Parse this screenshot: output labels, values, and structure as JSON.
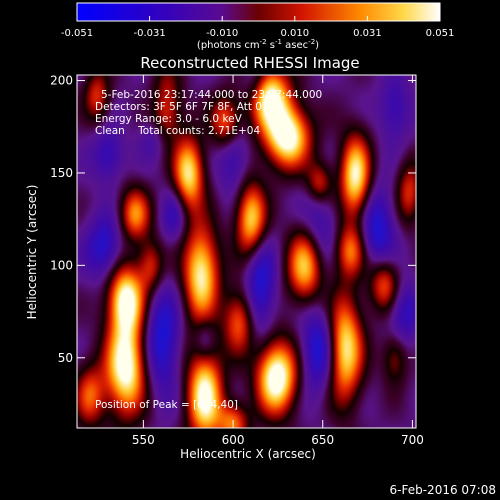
{
  "chart_data": {
    "type": "heatmap",
    "title": "Reconstructed RHESSI Image",
    "xlabel": "Heliocentric X (arcsec)",
    "ylabel": "Heliocentric Y (arcsec)",
    "xlim": [
      513,
      702
    ],
    "ylim": [
      12,
      203
    ],
    "x_ticks": [
      550,
      600,
      650,
      700
    ],
    "y_ticks": [
      50,
      100,
      150,
      200
    ],
    "colorbar": {
      "ticks": [
        "-0.051",
        "-0.031",
        "-0.010",
        "0.010",
        "0.031",
        "0.051"
      ],
      "vmin": -0.051,
      "vmax": 0.051,
      "unit_base": "(photons cm",
      "unit_exp1": "-2",
      "unit_mid": " s",
      "unit_exp2": "-1",
      "unit_mid2": " asec",
      "unit_exp3": "-2",
      "unit_end": ")"
    },
    "annotations": [
      "5-Feb-2016 23:17:44.000 to 23:27:44.000",
      "Detectors: 3F 5F 6F 7F 8F, Att 0",
      "Energy Range: 3.0 - 6.0 keV",
      "Clean    Total counts: 2.71E+04"
    ],
    "peak_label": "Position of Peak = [624,40]",
    "peak": [
      624,
      40
    ],
    "blobs": [
      [
        540,
        45,
        8,
        18,
        0.95
      ],
      [
        540,
        82,
        7,
        13,
        0.9
      ],
      [
        545,
        128,
        6,
        10,
        0.6
      ],
      [
        554,
        100,
        5,
        10,
        0.45
      ],
      [
        562,
        188,
        6,
        12,
        0.7
      ],
      [
        575,
        150,
        6,
        14,
        0.8
      ],
      [
        582,
        96,
        7,
        18,
        0.85
      ],
      [
        584,
        30,
        7,
        18,
        0.9
      ],
      [
        596,
        178,
        6,
        10,
        0.6
      ],
      [
        603,
        70,
        6,
        12,
        0.55
      ],
      [
        610,
        125,
        6,
        14,
        0.8
      ],
      [
        620,
        192,
        8,
        12,
        0.85
      ],
      [
        624,
        40,
        8,
        14,
        1.0
      ],
      [
        630,
        170,
        9,
        12,
        0.95
      ],
      [
        640,
        100,
        7,
        14,
        0.75
      ],
      [
        648,
        145,
        5,
        8,
        0.45
      ],
      [
        662,
        55,
        7,
        20,
        0.85
      ],
      [
        665,
        108,
        6,
        10,
        0.55
      ],
      [
        668,
        148,
        6,
        16,
        0.85
      ],
      [
        684,
        90,
        6,
        10,
        0.55
      ],
      [
        690,
        50,
        5,
        10,
        0.35
      ],
      [
        698,
        140,
        5,
        12,
        0.45
      ],
      [
        524,
        192,
        5,
        10,
        0.45
      ],
      [
        520,
        30,
        6,
        12,
        0.5
      ],
      [
        600,
        15,
        6,
        8,
        0.55
      ],
      [
        555,
        170,
        5,
        8,
        -0.2
      ]
    ],
    "minima": [
      [
        528,
        110,
        7,
        12,
        0.75
      ],
      [
        560,
        60,
        7,
        20,
        0.85
      ],
      [
        567,
        128,
        5,
        10,
        0.55
      ],
      [
        600,
        160,
        6,
        14,
        0.6
      ],
      [
        615,
        90,
        6,
        20,
        0.8
      ],
      [
        648,
        55,
        7,
        16,
        0.9
      ],
      [
        648,
        120,
        7,
        16,
        0.55
      ],
      [
        680,
        120,
        7,
        16,
        0.8
      ],
      [
        690,
        185,
        6,
        12,
        0.55
      ],
      [
        584,
        60,
        4,
        8,
        0.5
      ],
      [
        530,
        160,
        6,
        10,
        0.6
      ],
      [
        695,
        75,
        6,
        12,
        0.65
      ],
      [
        612,
        200,
        5,
        8,
        0.5
      ],
      [
        560,
        190,
        6,
        8,
        0.55
      ]
    ]
  },
  "footer_date": "6-Feb-2016 07:08"
}
